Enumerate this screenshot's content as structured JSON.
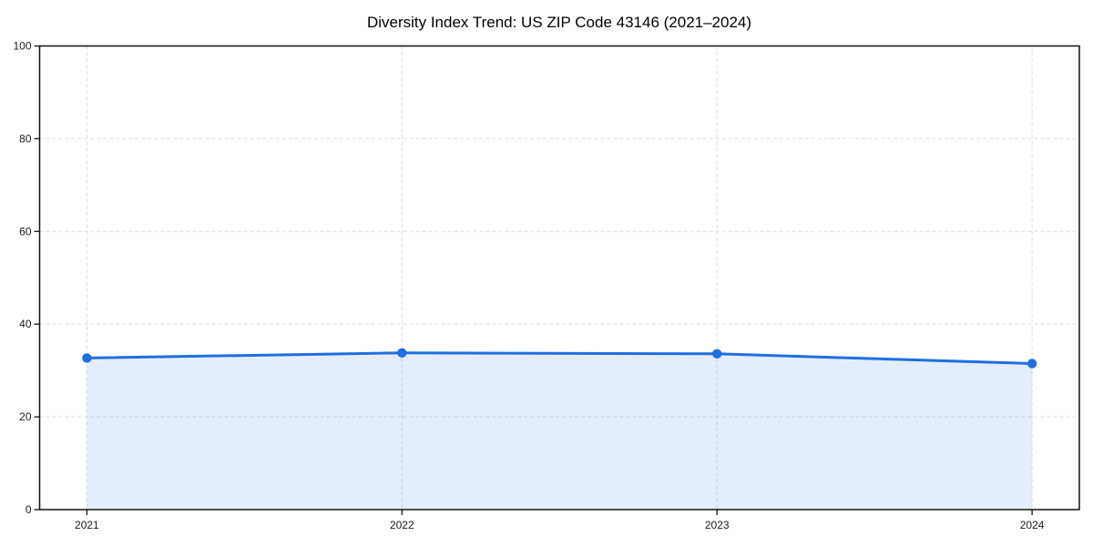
{
  "chart_data": {
    "type": "area",
    "title": "Diversity Index Trend: US ZIP Code 43146 (2021–2024)",
    "categories": [
      "2021",
      "2022",
      "2023",
      "2024"
    ],
    "series": [
      {
        "name": "Diversity Index",
        "values": [
          32.7,
          33.8,
          33.6,
          31.5
        ]
      }
    ],
    "xlabel": "",
    "ylabel": "",
    "ylim": [
      0,
      100
    ],
    "yticks": [
      0,
      20,
      40,
      60,
      80,
      100
    ],
    "grid": true,
    "grid_style": "dashed",
    "legend": "none",
    "colors": {
      "line": "#1f6fe0",
      "marker": "#1f6fe0",
      "fill": "#1f6fe0",
      "fill_opacity": 0.12,
      "grid": "#dddddd",
      "spine": "#111111",
      "tick": "#111111",
      "background": "#ffffff"
    }
  }
}
